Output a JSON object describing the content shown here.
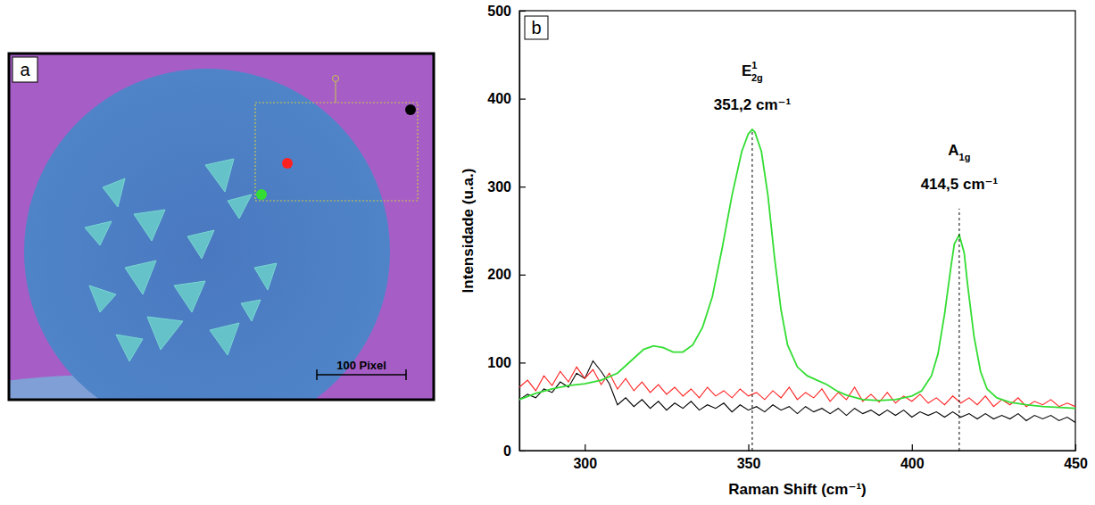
{
  "chart_data": {
    "type": "line",
    "panel_label": "b",
    "x_label": "Raman Shift (cm⁻¹)",
    "y_label": "Intensidade (u.a.)",
    "xlim": [
      280,
      450
    ],
    "xticks": [
      300,
      350,
      400,
      450
    ],
    "ylim": [
      0,
      500
    ],
    "yticks": [
      0,
      100,
      200,
      300,
      400,
      500
    ],
    "grid": false,
    "series": [
      {
        "color": "#000000",
        "x": [
          280,
          282.5,
          285,
          287.5,
          290,
          292.5,
          295,
          297.5,
          300,
          302.5,
          305,
          307.5,
          310,
          312.5,
          315,
          317.5,
          320,
          322.5,
          325,
          327.5,
          330,
          332.5,
          335,
          337.5,
          340,
          342.5,
          345,
          347.5,
          350,
          352.5,
          355,
          357.5,
          360,
          362.5,
          365,
          367.5,
          370,
          372.5,
          375,
          377.5,
          380,
          382.5,
          385,
          387.5,
          390,
          392.5,
          395,
          397.5,
          400,
          402.5,
          405,
          407.5,
          410,
          412.5,
          415,
          417.5,
          420,
          422.5,
          425,
          427.5,
          430,
          432.5,
          435,
          437.5,
          440,
          442.5,
          445,
          447.5,
          450
        ],
        "values": [
          58,
          64,
          60,
          70,
          66,
          78,
          72,
          88,
          82,
          102,
          90,
          76,
          52,
          60,
          50,
          58,
          48,
          56,
          46,
          54,
          48,
          56,
          46,
          52,
          48,
          54,
          44,
          52,
          46,
          50,
          44,
          52,
          46,
          50,
          42,
          50,
          44,
          48,
          42,
          48,
          40,
          48,
          42,
          46,
          40,
          46,
          40,
          46,
          38,
          44,
          40,
          44,
          38,
          44,
          38,
          42,
          36,
          42,
          36,
          40,
          36,
          42,
          34,
          40,
          36,
          40,
          34,
          38,
          32
        ]
      },
      {
        "color": "#ff2020",
        "x": [
          280,
          282.5,
          285,
          287.5,
          290,
          292.5,
          295,
          297.5,
          300,
          302.5,
          305,
          307.5,
          310,
          312.5,
          315,
          317.5,
          320,
          322.5,
          325,
          327.5,
          330,
          332.5,
          335,
          337.5,
          340,
          342.5,
          345,
          347.5,
          350,
          352.5,
          355,
          357.5,
          360,
          362.5,
          365,
          367.5,
          370,
          372.5,
          375,
          377.5,
          380,
          382.5,
          385,
          387.5,
          390,
          392.5,
          395,
          397.5,
          400,
          402.5,
          405,
          407.5,
          410,
          412.5,
          415,
          417.5,
          420,
          422.5,
          425,
          427.5,
          430,
          432.5,
          435,
          437.5,
          440,
          442.5,
          445,
          447.5,
          450
        ],
        "values": [
          72,
          80,
          68,
          85,
          74,
          90,
          78,
          95,
          82,
          92,
          75,
          88,
          70,
          82,
          68,
          78,
          66,
          75,
          64,
          72,
          62,
          70,
          60,
          72,
          62,
          68,
          60,
          70,
          62,
          66,
          58,
          68,
          60,
          72,
          58,
          66,
          60,
          70,
          56,
          66,
          58,
          72,
          56,
          64,
          55,
          66,
          54,
          62,
          56,
          64,
          54,
          60,
          52,
          62,
          54,
          60,
          52,
          62,
          50,
          58,
          52,
          60,
          50,
          56,
          52,
          58,
          50,
          54,
          50
        ]
      },
      {
        "color": "#33dd33",
        "x": [
          280,
          285,
          290,
          295,
          300,
          305,
          310,
          315,
          318,
          321,
          324,
          327,
          330,
          333,
          336,
          339,
          342,
          345,
          348,
          350,
          351.2,
          352,
          354,
          356,
          358,
          360,
          362,
          365,
          368,
          371,
          374,
          377,
          380,
          385,
          390,
          395,
          400,
          403,
          406,
          408,
          410,
          412,
          413,
          414.5,
          416,
          417,
          419,
          421,
          423,
          426,
          430,
          435,
          440,
          445,
          450
        ],
        "values": [
          58,
          65,
          70,
          74,
          76,
          80,
          88,
          105,
          115,
          119,
          117,
          112,
          112,
          120,
          140,
          175,
          230,
          290,
          340,
          360,
          365,
          362,
          340,
          290,
          220,
          160,
          120,
          95,
          85,
          80,
          75,
          68,
          63,
          58,
          57,
          58,
          62,
          68,
          85,
          110,
          155,
          210,
          235,
          245,
          225,
          190,
          130,
          90,
          70,
          60,
          55,
          52,
          50,
          49,
          48
        ]
      }
    ],
    "annotations": [
      {
        "symbol": {
          "base": "E",
          "sup": "1",
          "sub": "2g"
        },
        "text": "351,2 cm⁻¹",
        "x": 351.2,
        "y": 365,
        "line_style": "dashed"
      },
      {
        "symbol": {
          "base": "A",
          "sub": "1g"
        },
        "text": "414,5 cm⁻¹",
        "x": 414.5,
        "y": 275,
        "line_style": "dashed"
      }
    ]
  },
  "image_panel": {
    "panel_label": "a",
    "scale_bar": "100 Pixel",
    "points": [
      {
        "color": "#000000"
      },
      {
        "color": "#ff2020"
      },
      {
        "color": "#33dd33"
      }
    ]
  }
}
